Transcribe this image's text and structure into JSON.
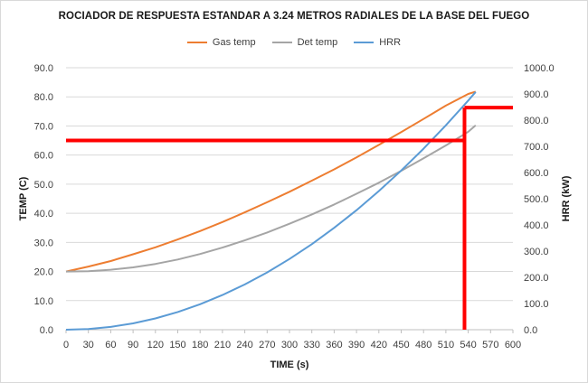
{
  "chart_data": {
    "type": "line",
    "title": "ROCIADOR DE RESPUESTA ESTANDAR A 3.24 METROS RADIALES DE LA BASE DEL FUEGO",
    "xlabel": "TIME (s)",
    "ylabel": "TEMP (C)",
    "y2label": "HRR (kW)",
    "xlim": [
      0,
      600
    ],
    "ylim": [
      0,
      90
    ],
    "y2lim": [
      0,
      1000
    ],
    "xticks": [
      "0",
      "30",
      "60",
      "90",
      "120",
      "150",
      "180",
      "210",
      "240",
      "270",
      "300",
      "330",
      "360",
      "390",
      "420",
      "450",
      "480",
      "510",
      "540",
      "570",
      "600"
    ],
    "yticks": [
      "0.0",
      "10.0",
      "20.0",
      "30.0",
      "40.0",
      "50.0",
      "60.0",
      "70.0",
      "80.0",
      "90.0"
    ],
    "y2ticks": [
      "0.0",
      "100.0",
      "200.0",
      "300.0",
      "400.0",
      "500.0",
      "600.0",
      "700.0",
      "800.0",
      "900.0",
      "1000.0"
    ],
    "grid": true,
    "legend_position": "top",
    "series": [
      {
        "name": "Gas temp",
        "axis": "left",
        "color": "#ed7d31",
        "x": [
          0,
          30,
          60,
          90,
          120,
          150,
          180,
          210,
          240,
          270,
          300,
          330,
          360,
          390,
          420,
          450,
          480,
          510,
          540,
          550
        ],
        "y": [
          20.0,
          21.7,
          23.6,
          25.9,
          28.3,
          31.0,
          33.9,
          37.0,
          40.3,
          43.8,
          47.4,
          51.2,
          55.1,
          59.2,
          63.5,
          67.9,
          72.4,
          77.0,
          81.0,
          81.8
        ]
      },
      {
        "name": "Det temp",
        "axis": "left",
        "color": "#a5a5a5",
        "x": [
          0,
          30,
          60,
          90,
          120,
          150,
          180,
          210,
          240,
          270,
          300,
          330,
          360,
          390,
          420,
          450,
          480,
          510,
          540,
          550
        ],
        "y": [
          20.0,
          20.1,
          20.6,
          21.4,
          22.6,
          24.1,
          26.0,
          28.2,
          30.7,
          33.4,
          36.4,
          39.6,
          43.0,
          46.7,
          50.5,
          54.6,
          58.9,
          63.3,
          68.0,
          70.2
        ]
      },
      {
        "name": "HRR",
        "axis": "right",
        "color": "#5b9bd5",
        "x": [
          0,
          30,
          60,
          90,
          120,
          150,
          180,
          210,
          240,
          270,
          300,
          330,
          360,
          390,
          420,
          450,
          480,
          510,
          540,
          550
        ],
        "y": [
          0,
          2.7,
          10.8,
          24.3,
          43.2,
          67.5,
          97.2,
          132.3,
          172.8,
          218.7,
          270,
          326.7,
          388.8,
          456.3,
          529.2,
          607.5,
          691.2,
          780.3,
          874.8,
          907.5
        ]
      }
    ],
    "annotations": [
      {
        "type": "hline",
        "axis": "left",
        "y": 65,
        "x_from": 0,
        "x_to": 535,
        "color": "#ff0000"
      },
      {
        "type": "hline",
        "axis": "left",
        "y": 76.3,
        "x_from": 535,
        "x_to": 600,
        "color": "#ff0000"
      },
      {
        "type": "vline",
        "x": 535,
        "y_from": 0,
        "y_to": 76.3,
        "color": "#ff0000"
      }
    ]
  }
}
